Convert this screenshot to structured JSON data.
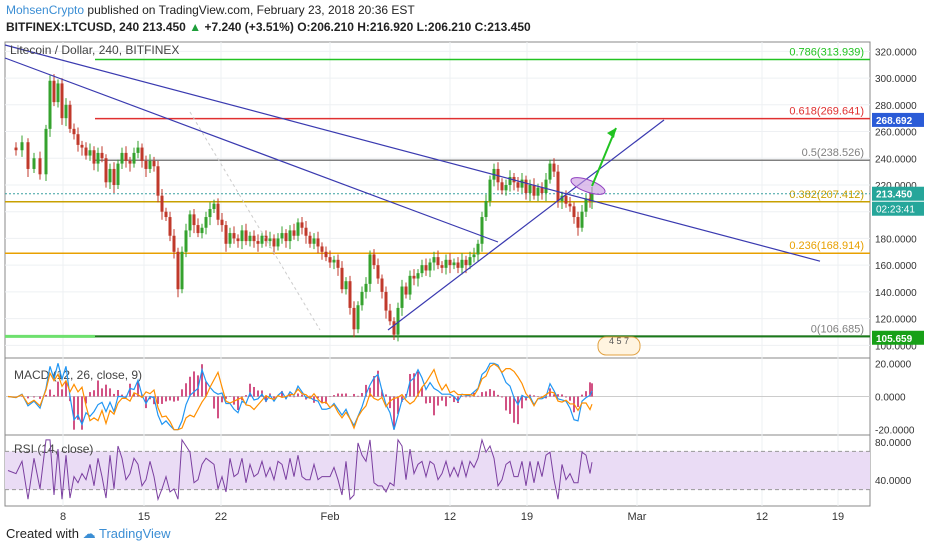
{
  "header": {
    "author": "MohsenCrypto",
    "published": "published on TradingView.com, February 23, 2018 20:36 EST",
    "symbol": "BITFINEX:LTCUSD, 240",
    "last": "213.450",
    "change": "+7.240 (+3.51%)",
    "ohlc": "O:206.210 H:216.920 L:206.210 C:213.450"
  },
  "chart_data": {
    "type": "candlestick",
    "title": "Litecoin / Dollar, 240, BITFINEX",
    "x_tick_labels": [
      "8",
      "15",
      "22",
      "Feb",
      "12",
      "19",
      "Mar",
      "12",
      "19"
    ],
    "y_tick_labels": [
      "320.0000",
      "300.0000",
      "280.0000",
      "260.0000",
      "240.0000",
      "220.0000",
      "200.0000",
      "180.0000",
      "160.0000",
      "140.0000",
      "120.0000",
      "100.0000"
    ],
    "ylim": [
      98,
      327
    ],
    "price_tags": {
      "current": "213.450",
      "countdown": "02:23:41",
      "resistance": "268.692",
      "support": "105.659"
    },
    "fib_levels": [
      {
        "label": "0.786(313.939)",
        "value": 313.939,
        "color": "#22c322"
      },
      {
        "label": "0.618(269.641)",
        "value": 269.641,
        "color": "#e03030"
      },
      {
        "label": "0.5(238.526)",
        "value": 238.526,
        "color": "#808080"
      },
      {
        "label": "0.382(207.412)",
        "value": 207.412,
        "color": "#c8a000"
      },
      {
        "label": "0.236(168.914)",
        "value": 168.914,
        "color": "#e8a000"
      },
      {
        "label": "0(106.685)",
        "value": 106.685,
        "color": "#808080"
      }
    ],
    "close_path": [
      [
        0,
        248
      ],
      [
        8,
        246
      ],
      [
        14,
        252
      ],
      [
        20,
        232
      ],
      [
        26,
        240
      ],
      [
        32,
        228
      ],
      [
        38,
        262
      ],
      [
        42,
        298
      ],
      [
        46,
        282
      ],
      [
        50,
        296
      ],
      [
        54,
        270
      ],
      [
        58,
        280
      ],
      [
        62,
        262
      ],
      [
        66,
        258
      ],
      [
        70,
        250
      ],
      [
        74,
        248
      ],
      [
        78,
        242
      ],
      [
        82,
        246
      ],
      [
        86,
        236
      ],
      [
        90,
        244
      ],
      [
        94,
        240
      ],
      [
        98,
        222
      ],
      [
        102,
        232
      ],
      [
        106,
        220
      ],
      [
        110,
        236
      ],
      [
        114,
        244
      ],
      [
        118,
        238
      ],
      [
        122,
        236
      ],
      [
        126,
        244
      ],
      [
        130,
        248
      ],
      [
        134,
        238
      ],
      [
        138,
        232
      ],
      [
        142,
        238
      ],
      [
        146,
        234
      ],
      [
        150,
        212
      ],
      [
        154,
        200
      ],
      [
        158,
        196
      ],
      [
        162,
        182
      ],
      [
        166,
        170
      ],
      [
        170,
        142
      ],
      [
        174,
        170
      ],
      [
        178,
        186
      ],
      [
        182,
        198
      ],
      [
        186,
        190
      ],
      [
        190,
        184
      ],
      [
        194,
        188
      ],
      [
        198,
        196
      ],
      [
        202,
        202
      ],
      [
        206,
        206
      ],
      [
        210,
        194
      ],
      [
        214,
        190
      ],
      [
        218,
        176
      ],
      [
        222,
        184
      ],
      [
        226,
        180
      ],
      [
        230,
        178
      ],
      [
        234,
        186
      ],
      [
        238,
        178
      ],
      [
        242,
        182
      ],
      [
        246,
        178
      ],
      [
        250,
        176
      ],
      [
        254,
        182
      ],
      [
        258,
        178
      ],
      [
        262,
        180
      ],
      [
        266,
        174
      ],
      [
        270,
        180
      ],
      [
        274,
        184
      ],
      [
        278,
        178
      ],
      [
        282,
        186
      ],
      [
        286,
        182
      ],
      [
        290,
        192
      ],
      [
        294,
        188
      ],
      [
        298,
        182
      ],
      [
        302,
        176
      ],
      [
        306,
        180
      ],
      [
        310,
        174
      ],
      [
        314,
        170
      ],
      [
        318,
        166
      ],
      [
        322,
        162
      ],
      [
        326,
        164
      ],
      [
        330,
        158
      ],
      [
        334,
        142
      ],
      [
        338,
        148
      ],
      [
        342,
        128
      ],
      [
        346,
        112
      ],
      [
        350,
        130
      ],
      [
        354,
        140
      ],
      [
        358,
        146
      ],
      [
        362,
        168
      ],
      [
        366,
        160
      ],
      [
        370,
        150
      ],
      [
        374,
        140
      ],
      [
        378,
        126
      ],
      [
        382,
        118
      ],
      [
        386,
        108
      ],
      [
        390,
        128
      ],
      [
        394,
        144
      ],
      [
        398,
        138
      ],
      [
        402,
        152
      ],
      [
        406,
        150
      ],
      [
        410,
        154
      ],
      [
        414,
        160
      ],
      [
        418,
        156
      ],
      [
        422,
        162
      ],
      [
        426,
        166
      ],
      [
        430,
        160
      ],
      [
        434,
        158
      ],
      [
        438,
        164
      ],
      [
        442,
        160
      ],
      [
        446,
        162
      ],
      [
        450,
        158
      ],
      [
        454,
        164
      ],
      [
        458,
        160
      ],
      [
        462,
        166
      ],
      [
        466,
        168
      ],
      [
        470,
        176
      ],
      [
        474,
        196
      ],
      [
        478,
        208
      ],
      [
        482,
        224
      ],
      [
        486,
        232
      ],
      [
        490,
        222
      ],
      [
        494,
        216
      ],
      [
        498,
        220
      ],
      [
        502,
        226
      ],
      [
        506,
        222
      ],
      [
        510,
        218
      ],
      [
        514,
        224
      ],
      [
        518,
        214
      ],
      [
        522,
        220
      ],
      [
        526,
        212
      ],
      [
        530,
        218
      ],
      [
        534,
        214
      ],
      [
        538,
        224
      ],
      [
        542,
        236
      ],
      [
        546,
        230
      ],
      [
        550,
        208
      ],
      [
        554,
        212
      ],
      [
        558,
        206
      ],
      [
        562,
        204
      ],
      [
        566,
        196
      ],
      [
        570,
        188
      ],
      [
        574,
        200
      ],
      [
        578,
        210
      ],
      [
        582,
        208
      ],
      [
        584,
        213.45
      ]
    ],
    "drawings": {
      "green_arrow_target": [
        616,
        128
      ],
      "trendlines": "descending resistance line, descending steep line, ascending support line"
    },
    "events": "4 5 7",
    "macd": {
      "title": "MACD (12, 26, close, 9)",
      "y_tick_labels": [
        "20.0000",
        "0.0000",
        "-20.0000"
      ],
      "ylim": [
        -22,
        22
      ]
    },
    "rsi": {
      "title": "RSI (14, close)",
      "y_tick_labels": [
        "80.0000",
        "40.0000"
      ],
      "ylim": [
        15,
        85
      ],
      "band": [
        30,
        70
      ]
    }
  },
  "footer": {
    "created": "Created with",
    "brand": "TradingView"
  }
}
